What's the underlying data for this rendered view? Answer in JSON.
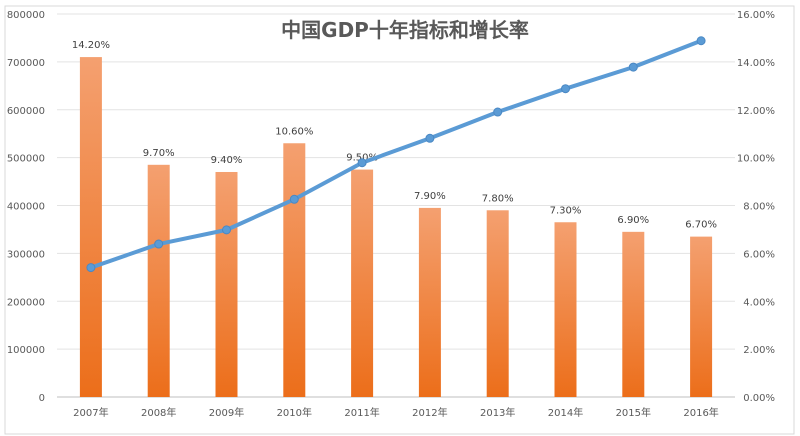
{
  "chart_data": {
    "type": "bar+line",
    "title": "中国GDP十年指标和增长率",
    "categories": [
      "2007年",
      "2008年",
      "2009年",
      "2010年",
      "2011年",
      "2012年",
      "2013年",
      "2014年",
      "2015年",
      "2016年"
    ],
    "series": [
      {
        "type": "bar",
        "axis": "right",
        "values": [
          14.2,
          9.7,
          9.4,
          10.6,
          9.5,
          7.9,
          7.8,
          7.3,
          6.9,
          6.7
        ],
        "labels": [
          "14.20%",
          "9.70%",
          "9.40%",
          "10.60%",
          "9.50%",
          "7.90%",
          "7.80%",
          "7.30%",
          "6.90%",
          "6.70%"
        ],
        "color": "#ED7D31"
      },
      {
        "type": "line",
        "axis": "left",
        "values": [
          270232,
          319516,
          349081,
          413030,
          489301,
          540367,
          595244,
          643974,
          689052,
          744127
        ],
        "color": "#5B9BD5"
      }
    ],
    "y_left": {
      "range": [
        0,
        800000
      ],
      "ticks": [
        "0",
        "100000",
        "200000",
        "300000",
        "400000",
        "500000",
        "600000",
        "700000",
        "800000"
      ]
    },
    "y_right": {
      "range": [
        0,
        16
      ],
      "ticks": [
        "0.00%",
        "2.00%",
        "4.00%",
        "6.00%",
        "8.00%",
        "10.00%",
        "12.00%",
        "14.00%",
        "16.00%"
      ]
    },
    "grid": true,
    "legend": "none"
  }
}
